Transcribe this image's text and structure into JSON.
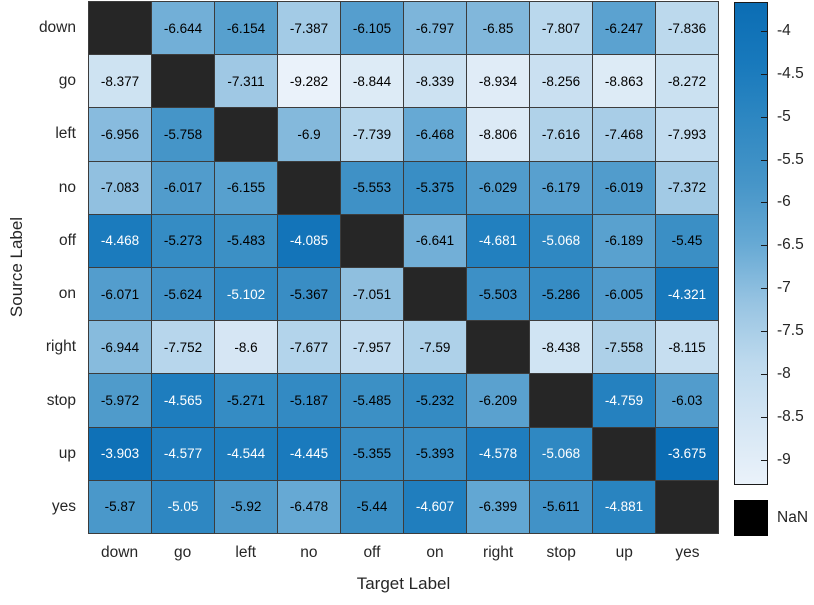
{
  "chart_data": {
    "type": "heatmap",
    "title": "",
    "xlabel": "Target Label",
    "ylabel": "Source Label",
    "x_categories": [
      "down",
      "go",
      "left",
      "no",
      "off",
      "on",
      "right",
      "stop",
      "up",
      "yes"
    ],
    "y_categories": [
      "down",
      "go",
      "left",
      "no",
      "off",
      "on",
      "right",
      "stop",
      "up",
      "yes"
    ],
    "matrix": [
      [
        null,
        -6.644,
        -6.154,
        -7.387,
        -6.105,
        -6.797,
        -6.85,
        -7.807,
        -6.247,
        -7.836
      ],
      [
        -8.377,
        null,
        -7.311,
        -9.282,
        -8.844,
        -8.339,
        -8.934,
        -8.256,
        -8.863,
        -8.272
      ],
      [
        -6.956,
        -5.758,
        null,
        -6.9,
        -7.739,
        -6.468,
        -8.806,
        -7.616,
        -7.468,
        -7.993
      ],
      [
        -7.083,
        -6.017,
        -6.155,
        null,
        -5.553,
        -5.375,
        -6.029,
        -6.179,
        -6.019,
        -7.372
      ],
      [
        -4.468,
        -5.273,
        -5.483,
        -4.085,
        null,
        -6.641,
        -4.681,
        -5.068,
        -6.189,
        -5.45
      ],
      [
        -6.071,
        -5.624,
        -5.102,
        -5.367,
        -7.051,
        null,
        -5.503,
        -5.286,
        -6.005,
        -4.321
      ],
      [
        -6.944,
        -7.752,
        -8.6,
        -7.677,
        -7.957,
        -7.59,
        null,
        -8.438,
        -7.558,
        -8.115
      ],
      [
        -5.972,
        -4.565,
        -5.271,
        -5.187,
        -5.485,
        -5.232,
        -6.209,
        null,
        -4.759,
        -6.03
      ],
      [
        -3.903,
        -4.577,
        -4.544,
        -4.445,
        -5.355,
        -5.393,
        -4.578,
        -5.068,
        null,
        -3.675
      ],
      [
        -5.87,
        -5.05,
        -5.92,
        -6.478,
        -5.44,
        -4.607,
        -6.399,
        -5.611,
        -4.881,
        null
      ]
    ],
    "vmin": -9.282,
    "vmax": -3.675,
    "white_text_threshold": -5.15,
    "colorbar_ticks": [
      -4,
      -4.5,
      -5,
      -5.5,
      -6,
      -6.5,
      -7,
      -7.5,
      -8,
      -8.5,
      -9
    ],
    "nan_label": "NaN",
    "legend_position": "right",
    "grid": true,
    "colors": {
      "gradient": [
        "#eaf2fa",
        "#d5e6f4",
        "#bedaee",
        "#98c4e2",
        "#66a9d4",
        "#4695c8",
        "#2f88c2",
        "#1879bc",
        "#0b6db4"
      ],
      "nan_cell": "#262626",
      "nan_swatch": "#000000",
      "grid_line": "#3c3c3c",
      "axis_text": "#262626",
      "cell_text_dark": "#000000",
      "cell_text_light": "#ffffff"
    }
  }
}
